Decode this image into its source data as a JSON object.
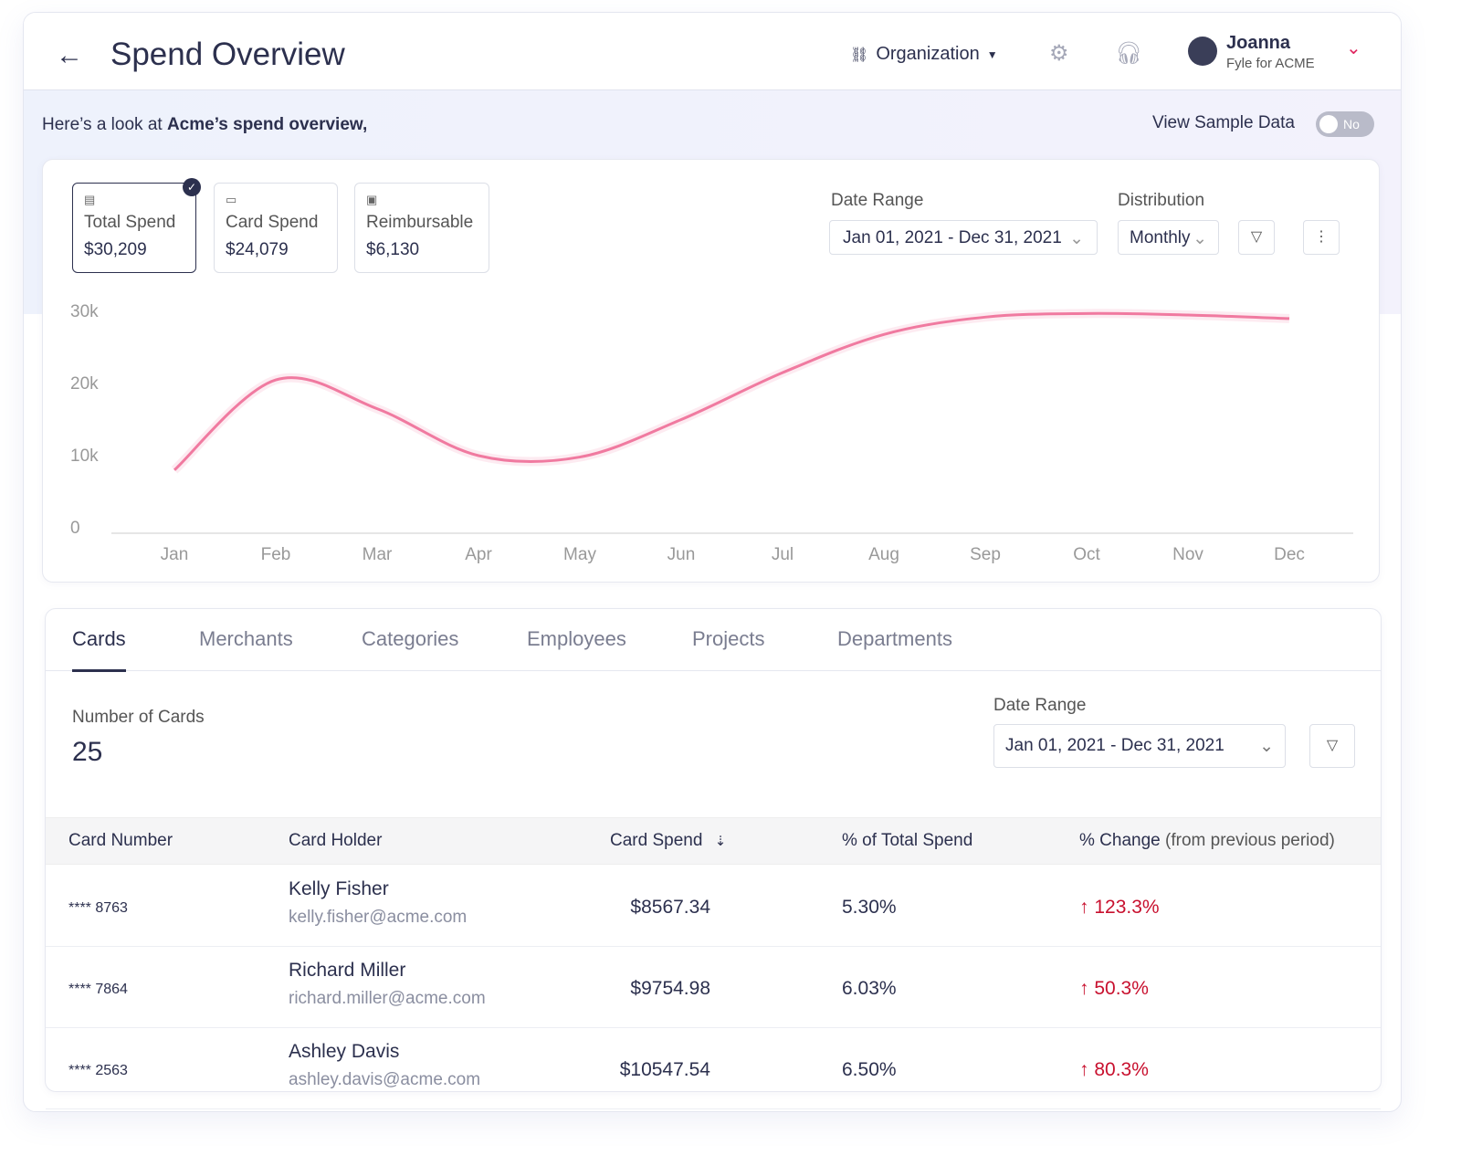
{
  "header": {
    "title": "Spend Overview",
    "org_label": "Organization",
    "user_name": "Joanna",
    "user_sub": "Fyle for ACME",
    "icons": [
      "back-arrow-icon",
      "org-chart-icon",
      "gear-icon",
      "headset-icon",
      "user-icon",
      "chevron-down-icon"
    ]
  },
  "greeting": {
    "prefix": "Here’s a look at ",
    "bold": "Acme’s spend overview,"
  },
  "sample": {
    "label": "View Sample Data",
    "toggle": "No",
    "on": false
  },
  "stats": [
    {
      "label": "Total Spend",
      "value": "$30,209",
      "selected": true
    },
    {
      "label": "Card Spend",
      "value": "$24,079",
      "selected": false
    },
    {
      "label": "Reimbursable",
      "value": "$6,130",
      "selected": false
    }
  ],
  "filters": {
    "date_label": "Date Range",
    "date_value": "Jan 01, 2021 - Dec 31, 2021",
    "dist_label": "Distribution",
    "dist_value": "Monthly"
  },
  "chart_data": {
    "type": "line",
    "categories": [
      "Jan",
      "Feb",
      "Mar",
      "Apr",
      "May",
      "Jun",
      "Jul",
      "Aug",
      "Sep",
      "Oct",
      "Nov",
      "Dec"
    ],
    "values": [
      8000,
      20500,
      16500,
      10000,
      9800,
      15000,
      21500,
      26800,
      29200,
      29700,
      29500,
      29000
    ],
    "yticks": [
      "0",
      "10k",
      "20k",
      "30k"
    ],
    "ylim": [
      0,
      30000
    ],
    "color": "#f07aa0",
    "grid": false
  },
  "tabs": [
    "Cards",
    "Merchants",
    "Categories",
    "Employees",
    "Projects",
    "Departments"
  ],
  "cards_panel": {
    "count_label": "Number of Cards",
    "count": "25",
    "date_label": "Date Range",
    "date_value": "Jan 01, 2021 - Dec 31, 2021"
  },
  "table": {
    "headers": [
      "Card Number",
      "Card Holder",
      "Card Spend",
      "% of Total Spend",
      "% Change",
      "(from previous period)"
    ],
    "rows": [
      {
        "card": "**** 8763",
        "name": "Kelly Fisher",
        "email": "kelly.fisher@acme.com",
        "spend": "$8567.34",
        "pct": "5.30%",
        "change": "123.3%"
      },
      {
        "card": "**** 7864",
        "name": "Richard Miller",
        "email": "richard.miller@acme.com",
        "spend": "$9754.98",
        "pct": "6.03%",
        "change": "50.3%"
      },
      {
        "card": "**** 2563",
        "name": "Ashley Davis",
        "email": "ashley.davis@acme.com",
        "spend": "$10547.54",
        "pct": "6.50%",
        "change": "80.3%"
      }
    ]
  }
}
